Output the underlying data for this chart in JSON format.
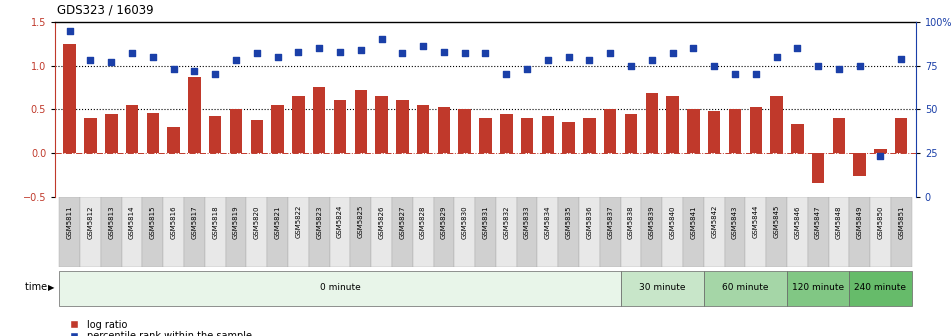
{
  "title": "GDS323 / 16039",
  "samples": [
    "GSM5811",
    "GSM5812",
    "GSM5813",
    "GSM5814",
    "GSM5815",
    "GSM5816",
    "GSM5817",
    "GSM5818",
    "GSM5819",
    "GSM5820",
    "GSM5821",
    "GSM5822",
    "GSM5823",
    "GSM5824",
    "GSM5825",
    "GSM5826",
    "GSM5827",
    "GSM5828",
    "GSM5829",
    "GSM5830",
    "GSM5831",
    "GSM5832",
    "GSM5833",
    "GSM5834",
    "GSM5835",
    "GSM5836",
    "GSM5837",
    "GSM5838",
    "GSM5839",
    "GSM5840",
    "GSM5841",
    "GSM5842",
    "GSM5843",
    "GSM5844",
    "GSM5845",
    "GSM5846",
    "GSM5847",
    "GSM5848",
    "GSM5849",
    "GSM5850",
    "GSM5851"
  ],
  "log_ratio": [
    1.25,
    0.4,
    0.45,
    0.55,
    0.46,
    0.3,
    0.87,
    0.42,
    0.5,
    0.38,
    0.55,
    0.65,
    0.75,
    0.6,
    0.72,
    0.65,
    0.6,
    0.55,
    0.53,
    0.5,
    0.4,
    0.45,
    0.4,
    0.42,
    0.35,
    0.4,
    0.5,
    0.45,
    0.68,
    0.65,
    0.5,
    0.48,
    0.5,
    0.53,
    0.65,
    0.33,
    -0.35,
    0.4,
    -0.27,
    0.05,
    0.4
  ],
  "percentile_rank": [
    95,
    78,
    77,
    82,
    80,
    73,
    72,
    70,
    78,
    82,
    80,
    83,
    85,
    83,
    84,
    90,
    82,
    86,
    83,
    82,
    82,
    70,
    73,
    78,
    80,
    78,
    82,
    75,
    78,
    82,
    85,
    75,
    70,
    70,
    80,
    85,
    75,
    73,
    75,
    23,
    79
  ],
  "time_groups": [
    {
      "label": "0 minute",
      "start": 0,
      "end": 27,
      "color": "#e8f5e9"
    },
    {
      "label": "30 minute",
      "start": 27,
      "end": 31,
      "color": "#c8e6c9"
    },
    {
      "label": "60 minute",
      "start": 31,
      "end": 35,
      "color": "#a5d6a7"
    },
    {
      "label": "120 minute",
      "start": 35,
      "end": 38,
      "color": "#81c784"
    },
    {
      "label": "240 minute",
      "start": 38,
      "end": 41,
      "color": "#66bb6a"
    }
  ],
  "bar_color": "#c0392b",
  "dot_color": "#1a3fa8",
  "ylim_left": [
    -0.5,
    1.5
  ],
  "ylim_right": [
    0,
    100
  ],
  "yticks_left": [
    -0.5,
    0.0,
    0.5,
    1.0,
    1.5
  ],
  "yticks_right": [
    0,
    25,
    50,
    75,
    100
  ],
  "fig_width": 9.51,
  "fig_height": 3.36,
  "fig_dpi": 100
}
